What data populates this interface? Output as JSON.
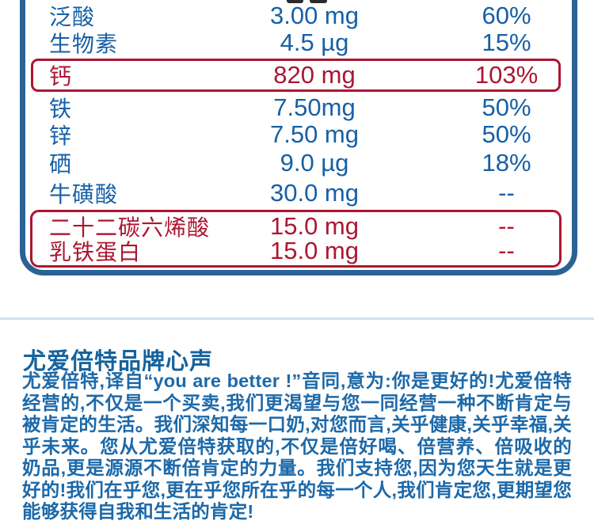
{
  "nutrition_table": {
    "rows": [
      {
        "name": "泛酸",
        "amount": "3.00 mg",
        "nrv": "60%",
        "highlighted": false
      },
      {
        "name": "生物素",
        "amount": "4.5 µg",
        "nrv": "15%",
        "highlighted": false
      },
      {
        "name": "钙",
        "amount": "820 mg",
        "nrv": "103%",
        "highlighted": true
      },
      {
        "name": "铁",
        "amount": "7.50mg",
        "nrv": "50%",
        "highlighted": false
      },
      {
        "name": "锌",
        "amount": "7.50 mg",
        "nrv": "50%",
        "highlighted": false
      },
      {
        "name": "硒",
        "amount": "9.0 µg",
        "nrv": "18%",
        "highlighted": false
      },
      {
        "name": "牛磺酸",
        "amount": "30.0 mg",
        "nrv": "--",
        "highlighted": false
      },
      {
        "name": "二十二碳六烯酸",
        "amount": "15.0 mg",
        "nrv": "--",
        "highlighted": true
      },
      {
        "name": "乳铁蛋白",
        "amount": "15.0 mg",
        "nrv": "--",
        "highlighted": true
      }
    ]
  },
  "brand": {
    "heading": "尤爱倍特品牌心声",
    "body": "尤爱倍特,译自“you are better !”音同,意为:你是更好的!尤爱倍特经营的,不仅是一个买卖,我们更渴望与您一同经营一种不断肯定与被肯定的生活。我们深知每一口奶,对您而言,关乎健康,关乎幸福,关乎未来。您从尤爱倍特获取的,不仅是倍好喝、倍营养、倍吸收的奶品,更是源源不断倍肯定的力量。我们支持您,因为您天生就是更好的!我们在乎您,更在乎您所在乎的每一个人,我们肯定您,更期望您能够获得自我和生活的肯定!"
  },
  "colors": {
    "table_text_blue": "#1760a6",
    "table_border_blue": "#2a6295",
    "highlight_red": "#ac1631",
    "heading_blue": "#15639e",
    "body_blue": "#1c69a9",
    "divider_blue": "#cfe1ee"
  }
}
